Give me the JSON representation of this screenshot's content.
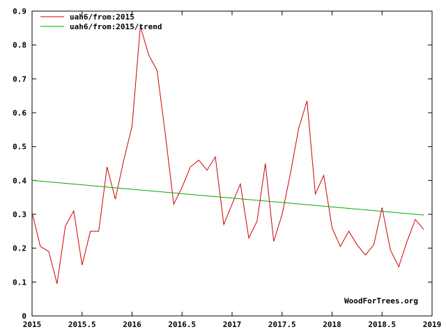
{
  "chart_data": {
    "type": "line",
    "title": "",
    "xlabel": "",
    "ylabel": "",
    "xlim": [
      2015,
      2019
    ],
    "ylim": [
      0,
      0.9
    ],
    "x_ticks": [
      2015,
      2015.5,
      2016,
      2016.5,
      2017,
      2017.5,
      2018,
      2018.5,
      2019
    ],
    "x_tick_labels": [
      "2015",
      "2015.5",
      "2016",
      "2016.5",
      "2017",
      "2017.5",
      "2018",
      "2018.5",
      "2019"
    ],
    "y_ticks": [
      0,
      0.1,
      0.2,
      0.3,
      0.4,
      0.5,
      0.6,
      0.7,
      0.8,
      0.9
    ],
    "y_tick_labels": [
      "0",
      "0.1",
      "0.2",
      "0.3",
      "0.4",
      "0.5",
      "0.6",
      "0.7",
      "0.8",
      "0.9"
    ],
    "grid": false,
    "legend_position": "top-left",
    "watermark": "WoodForTrees.org",
    "series": [
      {
        "name": "uah6/from:2015",
        "color": "#cc0000",
        "x": [
          2015.0,
          2015.083,
          2015.167,
          2015.25,
          2015.333,
          2015.417,
          2015.5,
          2015.583,
          2015.667,
          2015.75,
          2015.833,
          2015.917,
          2016.0,
          2016.083,
          2016.167,
          2016.25,
          2016.333,
          2016.417,
          2016.5,
          2016.583,
          2016.667,
          2016.75,
          2016.833,
          2016.917,
          2017.0,
          2017.083,
          2017.167,
          2017.25,
          2017.333,
          2017.417,
          2017.5,
          2017.583,
          2017.667,
          2017.75,
          2017.833,
          2017.917,
          2018.0,
          2018.083,
          2018.167,
          2018.25,
          2018.333,
          2018.417,
          2018.5,
          2018.583,
          2018.667,
          2018.75,
          2018.833,
          2018.917
        ],
        "values": [
          0.305,
          0.205,
          0.19,
          0.095,
          0.265,
          0.31,
          0.15,
          0.25,
          0.25,
          0.44,
          0.345,
          0.46,
          0.56,
          0.855,
          0.77,
          0.725,
          0.535,
          0.33,
          0.38,
          0.44,
          0.46,
          0.43,
          0.47,
          0.27,
          0.33,
          0.39,
          0.23,
          0.28,
          0.45,
          0.22,
          0.3,
          0.42,
          0.555,
          0.635,
          0.36,
          0.415,
          0.26,
          0.205,
          0.25,
          0.21,
          0.18,
          0.21,
          0.32,
          0.195,
          0.145,
          0.22,
          0.285,
          0.255
        ]
      },
      {
        "name": "uah6/from:2015/trend",
        "color": "#00aa00",
        "x": [
          2015.0,
          2018.917
        ],
        "values": [
          0.4,
          0.298
        ]
      }
    ]
  }
}
